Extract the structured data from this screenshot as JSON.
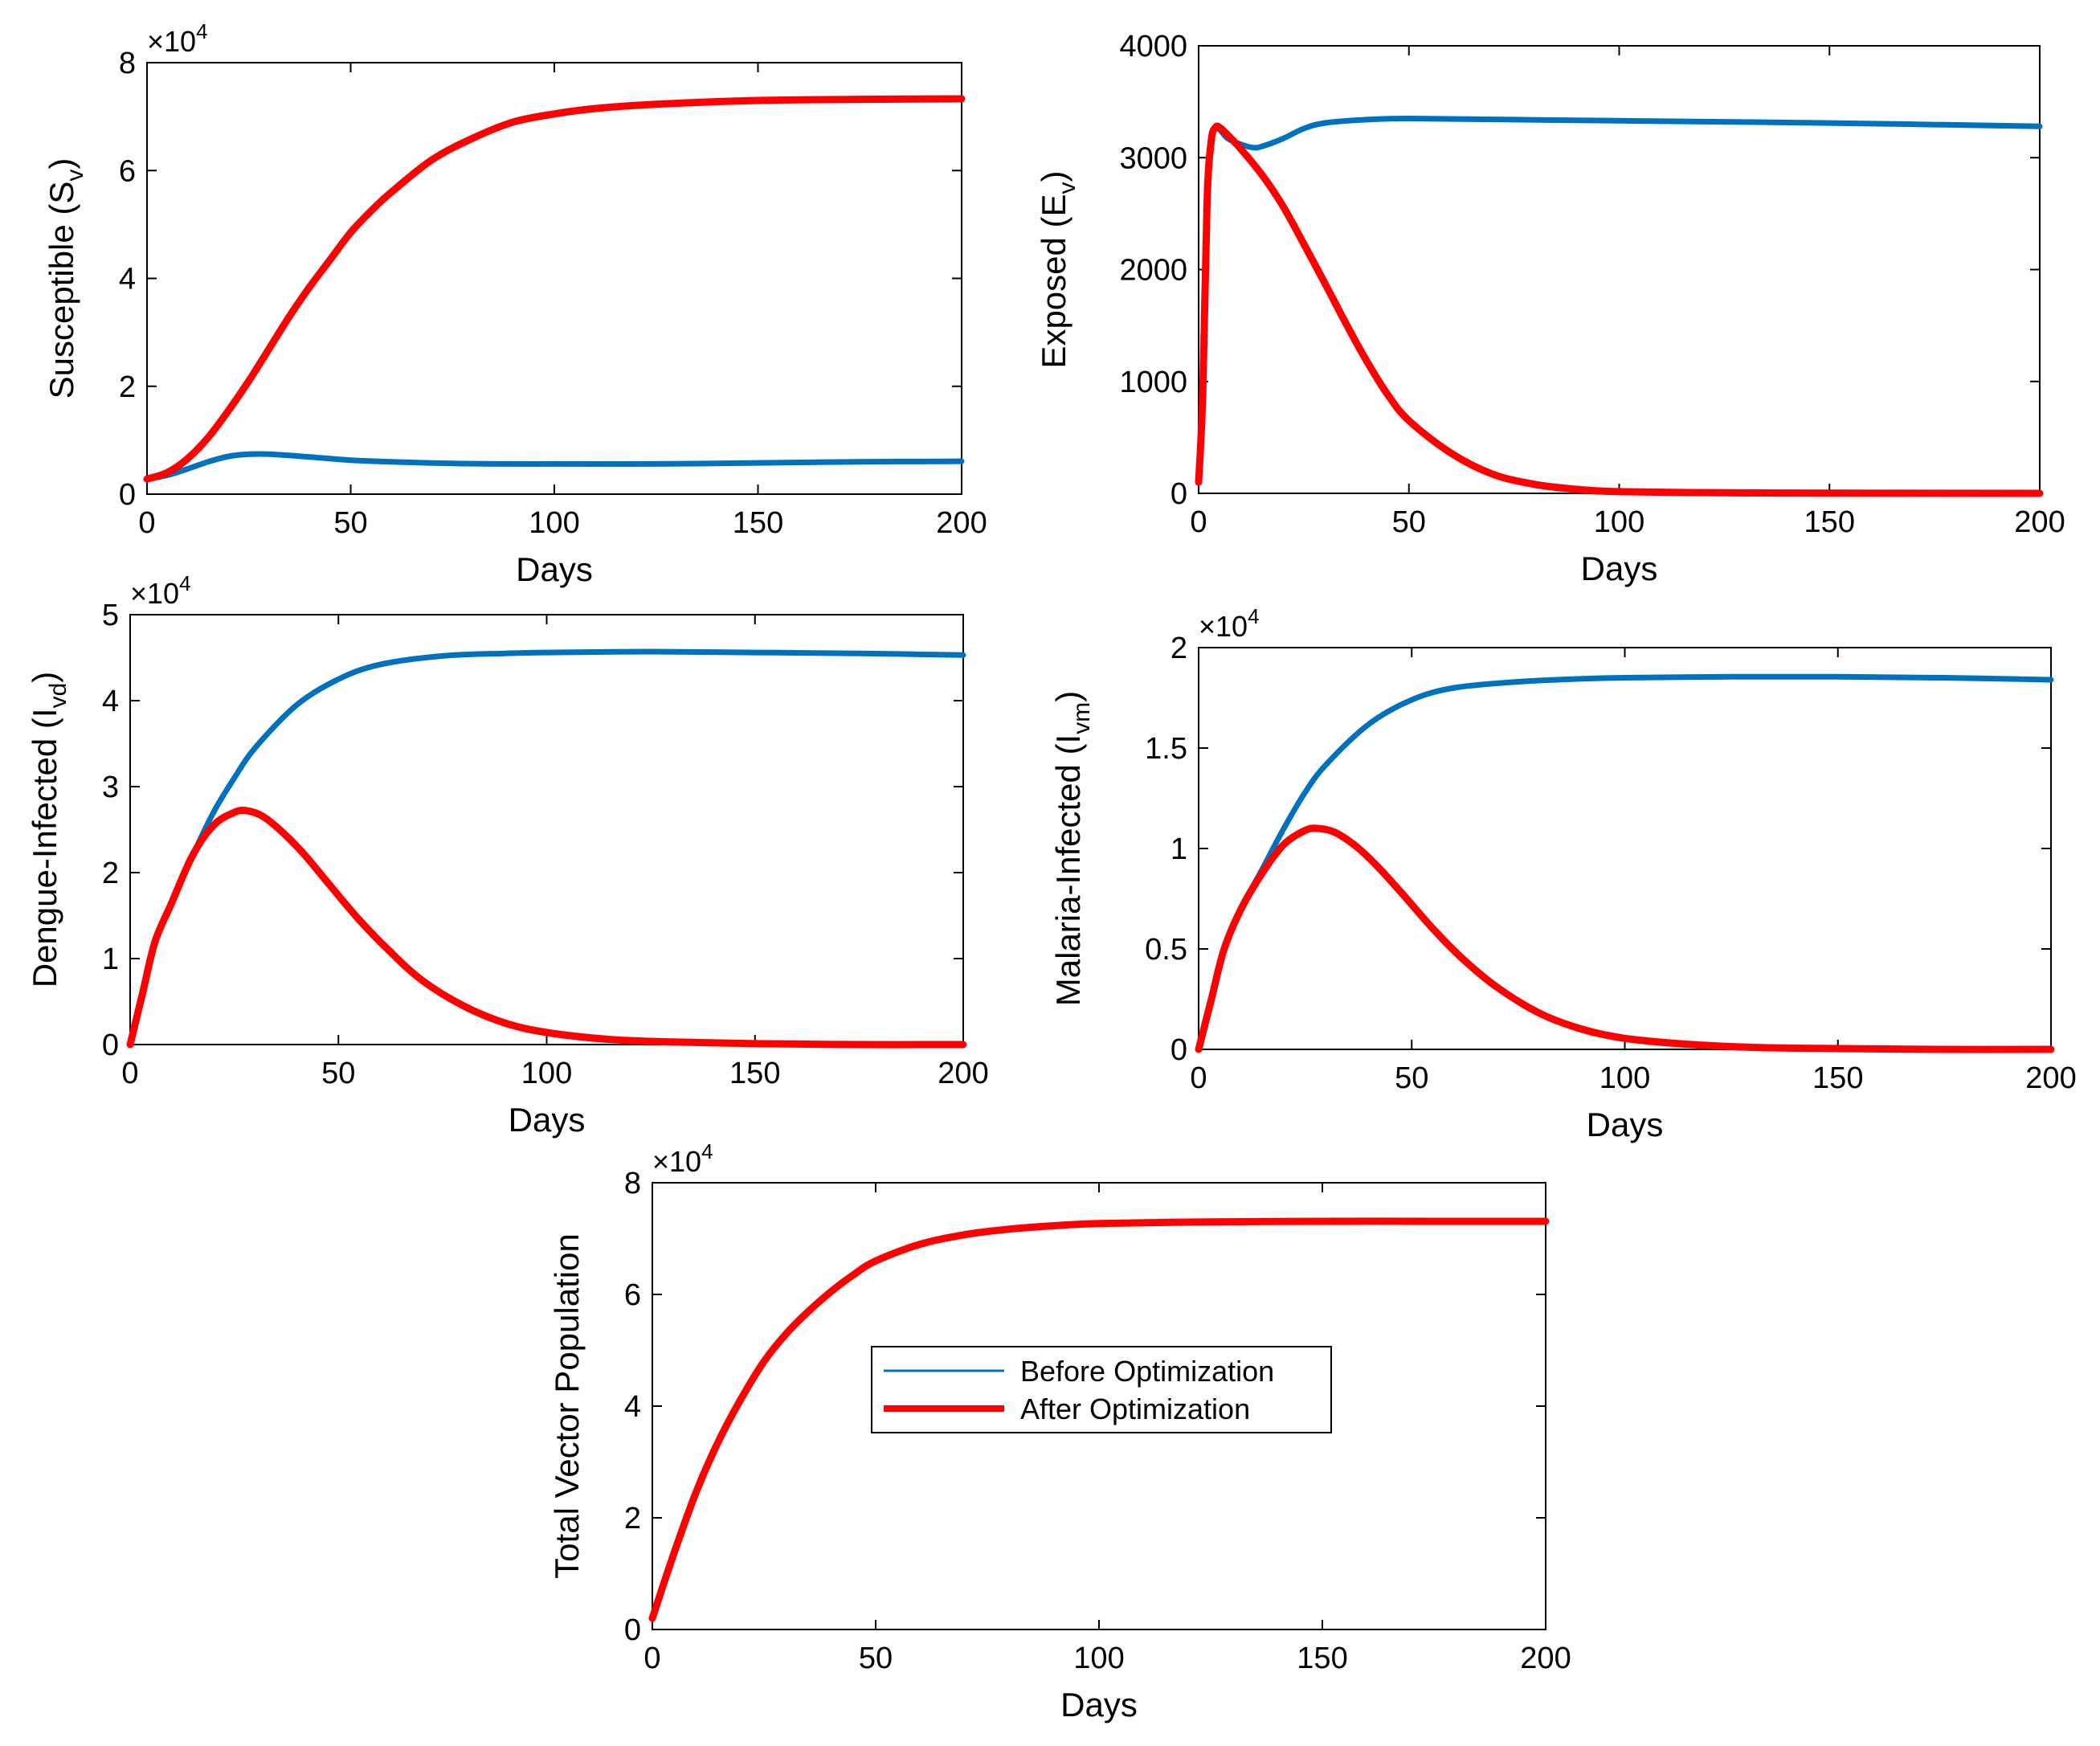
{
  "figure": {
    "colors": {
      "before": "#0072BD",
      "after": "#FF0000",
      "axes": "#000000",
      "background": "#FFFFFF"
    },
    "legend": {
      "entries": [
        "Before Optimization",
        "After Optimization"
      ],
      "location": "inside bottom panel, center"
    }
  },
  "chart_data": [
    {
      "id": "susceptible",
      "type": "line",
      "ylabel_main": "Susceptible (S",
      "ylabel_sub": "v",
      "ylabel_close": ")",
      "xlabel": "Days",
      "exponent_base": "×10",
      "exponent_power": "4",
      "xlim": [
        0,
        200
      ],
      "ylim": [
        0,
        8
      ],
      "xticks": [
        0,
        50,
        100,
        150,
        200
      ],
      "yticks": [
        0,
        2,
        4,
        6,
        8
      ],
      "series": [
        {
          "name": "Before Optimization",
          "x": [
            0,
            5,
            10,
            15,
            20,
            25,
            30,
            40,
            50,
            60,
            75,
            90,
            100,
            125,
            150,
            175,
            200
          ],
          "y": [
            0.28,
            0.35,
            0.47,
            0.6,
            0.7,
            0.74,
            0.74,
            0.69,
            0.63,
            0.6,
            0.57,
            0.56,
            0.56,
            0.56,
            0.58,
            0.6,
            0.61
          ]
        },
        {
          "name": "After Optimization",
          "x": [
            0,
            5,
            10,
            15,
            20,
            25,
            30,
            35,
            40,
            45,
            50,
            55,
            60,
            70,
            80,
            90,
            100,
            110,
            125,
            150,
            175,
            200
          ],
          "y": [
            0.28,
            0.4,
            0.66,
            1.05,
            1.55,
            2.1,
            2.7,
            3.3,
            3.85,
            4.35,
            4.85,
            5.25,
            5.6,
            6.2,
            6.6,
            6.9,
            7.05,
            7.15,
            7.23,
            7.3,
            7.32,
            7.33
          ]
        }
      ]
    },
    {
      "id": "exposed",
      "type": "line",
      "ylabel_main": "Exposed (E",
      "ylabel_sub": "v",
      "ylabel_close": ")",
      "xlabel": "Days",
      "exponent_base": "",
      "exponent_power": "",
      "xlim": [
        0,
        200
      ],
      "ylim": [
        0,
        4000
      ],
      "xticks": [
        0,
        50,
        100,
        150,
        200
      ],
      "yticks": [
        0,
        1000,
        2000,
        3000,
        4000
      ],
      "series": [
        {
          "name": "Before Optimization",
          "x": [
            0,
            1,
            2,
            3,
            4,
            5,
            7,
            10,
            13,
            15,
            20,
            25,
            30,
            40,
            50,
            75,
            100,
            150,
            200
          ],
          "y": [
            100,
            900,
            2600,
            3150,
            3260,
            3250,
            3170,
            3120,
            3090,
            3100,
            3170,
            3260,
            3310,
            3340,
            3350,
            3340,
            3330,
            3310,
            3280
          ]
        },
        {
          "name": "After Optimization",
          "x": [
            0,
            1,
            2,
            3,
            4,
            5,
            7,
            10,
            15,
            20,
            25,
            30,
            35,
            40,
            45,
            50,
            60,
            70,
            80,
            90,
            100,
            125,
            150,
            200
          ],
          "y": [
            100,
            900,
            2600,
            3150,
            3270,
            3270,
            3200,
            3080,
            2850,
            2570,
            2230,
            1880,
            1520,
            1180,
            880,
            650,
            360,
            170,
            80,
            35,
            15,
            5,
            2,
            0
          ]
        }
      ]
    },
    {
      "id": "dengue",
      "type": "line",
      "ylabel_main": "Dengue-Infected (I",
      "ylabel_sub": "vd",
      "ylabel_close": ")",
      "xlabel": "Days",
      "exponent_base": "×10",
      "exponent_power": "4",
      "xlim": [
        0,
        200
      ],
      "ylim": [
        0,
        5
      ],
      "xticks": [
        0,
        50,
        100,
        150,
        200
      ],
      "yticks": [
        0,
        1,
        2,
        3,
        4,
        5
      ],
      "series": [
        {
          "name": "Before Optimization",
          "x": [
            0,
            3,
            6,
            10,
            15,
            20,
            25,
            30,
            40,
            50,
            60,
            75,
            90,
            100,
            125,
            150,
            175,
            200
          ],
          "y": [
            0,
            0.6,
            1.2,
            1.65,
            2.2,
            2.7,
            3.1,
            3.45,
            3.95,
            4.25,
            4.42,
            4.52,
            4.55,
            4.56,
            4.57,
            4.56,
            4.55,
            4.53
          ]
        },
        {
          "name": "After Optimization",
          "x": [
            0,
            3,
            6,
            10,
            15,
            20,
            25,
            28,
            32,
            37,
            42,
            48,
            55,
            62,
            70,
            80,
            90,
            100,
            115,
            130,
            150,
            175,
            200
          ],
          "y": [
            0,
            0.6,
            1.2,
            1.65,
            2.2,
            2.55,
            2.7,
            2.72,
            2.65,
            2.45,
            2.2,
            1.85,
            1.45,
            1.1,
            0.75,
            0.45,
            0.25,
            0.14,
            0.06,
            0.03,
            0.01,
            0,
            0
          ]
        }
      ]
    },
    {
      "id": "malaria",
      "type": "line",
      "ylabel_main": "Malaria-Infected (I",
      "ylabel_sub": "vm",
      "ylabel_close": ")",
      "xlabel": "Days",
      "exponent_base": "×10",
      "exponent_power": "4",
      "xlim": [
        0,
        200
      ],
      "ylim": [
        0,
        2
      ],
      "xticks": [
        0,
        50,
        100,
        150,
        200
      ],
      "yticks": [
        0,
        0.5,
        1,
        1.5,
        2
      ],
      "ytick_labels": [
        "0",
        "0.5",
        "1",
        "1.5",
        "2"
      ],
      "series": [
        {
          "name": "Before Optimization",
          "x": [
            0,
            3,
            6,
            10,
            15,
            20,
            25,
            30,
            40,
            50,
            60,
            75,
            90,
            100,
            125,
            150,
            175,
            200
          ],
          "y": [
            0,
            0.25,
            0.5,
            0.7,
            0.9,
            1.1,
            1.28,
            1.42,
            1.62,
            1.74,
            1.8,
            1.83,
            1.845,
            1.85,
            1.855,
            1.855,
            1.85,
            1.84
          ]
        },
        {
          "name": "After Optimization",
          "x": [
            0,
            3,
            6,
            10,
            15,
            20,
            25,
            28,
            32,
            37,
            42,
            48,
            55,
            62,
            70,
            80,
            90,
            100,
            115,
            130,
            150,
            175,
            200
          ],
          "y": [
            0,
            0.25,
            0.5,
            0.7,
            0.88,
            1.02,
            1.09,
            1.1,
            1.08,
            1.01,
            0.91,
            0.77,
            0.6,
            0.45,
            0.31,
            0.18,
            0.1,
            0.055,
            0.025,
            0.01,
            0.004,
            0,
            0
          ]
        }
      ]
    },
    {
      "id": "total",
      "type": "line",
      "ylabel_main": "Total Vector Population",
      "ylabel_sub": "",
      "ylabel_close": "",
      "xlabel": "Days",
      "exponent_base": "×10",
      "exponent_power": "4",
      "xlim": [
        0,
        200
      ],
      "ylim": [
        0,
        8
      ],
      "xticks": [
        0,
        50,
        100,
        150,
        200
      ],
      "yticks": [
        0,
        2,
        4,
        6,
        8
      ],
      "series": [
        {
          "name": "Before Optimization",
          "x": [
            0,
            5,
            10,
            15,
            20,
            25,
            30,
            35,
            40,
            45,
            50,
            60,
            70,
            80,
            90,
            100,
            125,
            150,
            175,
            200
          ],
          "y": [
            0.2,
            1.4,
            2.5,
            3.4,
            4.15,
            4.8,
            5.3,
            5.7,
            6.05,
            6.35,
            6.6,
            6.9,
            7.07,
            7.17,
            7.23,
            7.27,
            7.3,
            7.31,
            7.31,
            7.31
          ]
        },
        {
          "name": "After Optimization",
          "x": [
            0,
            5,
            10,
            15,
            20,
            25,
            30,
            35,
            40,
            45,
            50,
            60,
            70,
            80,
            90,
            100,
            125,
            150,
            175,
            200
          ],
          "y": [
            0.2,
            1.4,
            2.5,
            3.4,
            4.15,
            4.8,
            5.3,
            5.7,
            6.05,
            6.35,
            6.6,
            6.9,
            7.07,
            7.17,
            7.23,
            7.27,
            7.3,
            7.31,
            7.31,
            7.31
          ]
        }
      ]
    }
  ]
}
